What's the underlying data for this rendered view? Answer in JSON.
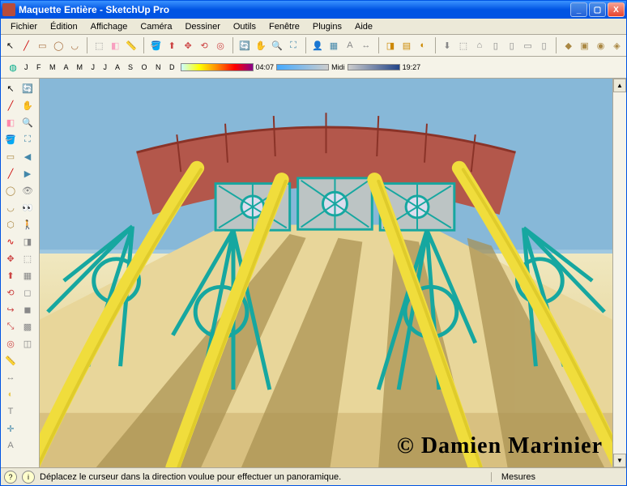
{
  "window": {
    "title": "Maquette Entière - SketchUp Pro"
  },
  "titlebar_buttons": {
    "min": "_",
    "max": "▢",
    "close": "X"
  },
  "menu": [
    "Fichier",
    "Édition",
    "Affichage",
    "Caméra",
    "Dessiner",
    "Outils",
    "Fenêtre",
    "Plugins",
    "Aide"
  ],
  "toolbar_icons": [
    {
      "name": "select-arrow",
      "glyph": "↖",
      "color": "#000"
    },
    {
      "name": "line-tool",
      "glyph": "╱",
      "color": "#c00"
    },
    {
      "name": "rectangle-tool",
      "glyph": "▭",
      "color": "#a87040"
    },
    {
      "name": "circle-tool",
      "glyph": "◯",
      "color": "#a87040"
    },
    {
      "name": "arc-tool",
      "glyph": "◡",
      "color": "#a87040"
    },
    {
      "name": "sep",
      "glyph": "",
      "color": ""
    },
    {
      "name": "component-tool",
      "glyph": "⬚",
      "color": "#888"
    },
    {
      "name": "eraser-tool",
      "glyph": "◧",
      "color": "#f8a0c0"
    },
    {
      "name": "tape-tool",
      "glyph": "📏",
      "color": "#e8c850"
    },
    {
      "name": "sep",
      "glyph": "",
      "color": ""
    },
    {
      "name": "paint-tool",
      "glyph": "🪣",
      "color": "#c44"
    },
    {
      "name": "pushpull-tool",
      "glyph": "⬆",
      "color": "#c44"
    },
    {
      "name": "move-tool",
      "glyph": "✥",
      "color": "#c44"
    },
    {
      "name": "rotate-tool",
      "glyph": "⟲",
      "color": "#c44"
    },
    {
      "name": "offset-tool",
      "glyph": "◎",
      "color": "#c44"
    },
    {
      "name": "sep",
      "glyph": "",
      "color": ""
    },
    {
      "name": "orbit-tool",
      "glyph": "🔄",
      "color": "#080"
    },
    {
      "name": "pan-tool",
      "glyph": "✋",
      "color": "#e8c850"
    },
    {
      "name": "zoom-tool",
      "glyph": "🔍",
      "color": "#48a"
    },
    {
      "name": "zoom-extents-tool",
      "glyph": "⛶",
      "color": "#48a"
    },
    {
      "name": "sep",
      "glyph": "",
      "color": ""
    },
    {
      "name": "avatar-tool",
      "glyph": "👤",
      "color": "#a66"
    },
    {
      "name": "window-tool",
      "glyph": "▦",
      "color": "#48a"
    },
    {
      "name": "text-tool",
      "glyph": "A",
      "color": "#888"
    },
    {
      "name": "dim-tool",
      "glyph": "↔",
      "color": "#888"
    },
    {
      "name": "sep",
      "glyph": "",
      "color": ""
    },
    {
      "name": "section-tool",
      "glyph": "◨",
      "color": "#c80"
    },
    {
      "name": "layers-tool",
      "glyph": "▤",
      "color": "#c80"
    },
    {
      "name": "shadow-tool",
      "glyph": "◐",
      "color": "#c80"
    },
    {
      "name": "sep",
      "glyph": "",
      "color": ""
    },
    {
      "name": "export-tool",
      "glyph": "⬇",
      "color": "#888"
    },
    {
      "name": "iso-tool",
      "glyph": "⬚",
      "color": "#888"
    },
    {
      "name": "house-tool",
      "glyph": "⌂",
      "color": "#888"
    },
    {
      "name": "front-tool",
      "glyph": "▯",
      "color": "#888"
    },
    {
      "name": "right-tool",
      "glyph": "▯",
      "color": "#888"
    },
    {
      "name": "top-tool",
      "glyph": "▭",
      "color": "#888"
    },
    {
      "name": "back-tool",
      "glyph": "▯",
      "color": "#888"
    },
    {
      "name": "sep",
      "glyph": "",
      "color": ""
    },
    {
      "name": "plugin1-tool",
      "glyph": "◆",
      "color": "#a84"
    },
    {
      "name": "plugin2-tool",
      "glyph": "▣",
      "color": "#a84"
    },
    {
      "name": "plugin3-tool",
      "glyph": "◉",
      "color": "#a84"
    },
    {
      "name": "plugin4-tool",
      "glyph": "◈",
      "color": "#a84"
    }
  ],
  "toolbar2": {
    "icon": {
      "glyph": "◍",
      "color": "#0a8"
    },
    "months": "J F M A M J J A S O N D",
    "time1": "04:07",
    "label_midi": "Midi",
    "time2": "19:27"
  },
  "left_tools": [
    {
      "name": "select",
      "glyph": "↖",
      "color": "#000"
    },
    {
      "name": "line",
      "glyph": "╱",
      "color": "#c00"
    },
    {
      "name": "eraser",
      "glyph": "◧",
      "color": "#f8a"
    },
    {
      "name": "paint",
      "glyph": "🪣",
      "color": "#c44"
    },
    {
      "name": "rect",
      "glyph": "▭",
      "color": "#a84"
    },
    {
      "name": "line2",
      "glyph": "╱",
      "color": "#c00"
    },
    {
      "name": "circle",
      "glyph": "◯",
      "color": "#a84"
    },
    {
      "name": "arc",
      "glyph": "◡",
      "color": "#a84"
    },
    {
      "name": "polygon",
      "glyph": "⬡",
      "color": "#a84"
    },
    {
      "name": "freehand",
      "glyph": "∿",
      "color": "#c00"
    },
    {
      "name": "move",
      "glyph": "✥",
      "color": "#c44"
    },
    {
      "name": "pushpull",
      "glyph": "⬆",
      "color": "#c44"
    },
    {
      "name": "rotate",
      "glyph": "⟲",
      "color": "#c44"
    },
    {
      "name": "follow",
      "glyph": "↪",
      "color": "#c44"
    },
    {
      "name": "scale",
      "glyph": "⤡",
      "color": "#c44"
    },
    {
      "name": "offset",
      "glyph": "◎",
      "color": "#c44"
    },
    {
      "name": "tape",
      "glyph": "📏",
      "color": "#e8c850"
    },
    {
      "name": "dim",
      "glyph": "↔",
      "color": "#888"
    },
    {
      "name": "protractor",
      "glyph": "◐",
      "color": "#e8c850"
    },
    {
      "name": "text",
      "glyph": "T",
      "color": "#888"
    },
    {
      "name": "axes",
      "glyph": "✛",
      "color": "#48a"
    },
    {
      "name": "3dtext",
      "glyph": "A",
      "color": "#888"
    },
    {
      "name": "orbit",
      "glyph": "🔄",
      "color": "#080"
    },
    {
      "name": "pan",
      "glyph": "✋",
      "color": "#e8c850"
    },
    {
      "name": "zoom",
      "glyph": "🔍",
      "color": "#48a"
    },
    {
      "name": "zoomwin",
      "glyph": "⛶",
      "color": "#48a"
    },
    {
      "name": "prev",
      "glyph": "◀",
      "color": "#48a"
    },
    {
      "name": "next",
      "glyph": "▶",
      "color": "#48a"
    },
    {
      "name": "position",
      "glyph": "👁",
      "color": "#888"
    },
    {
      "name": "look",
      "glyph": "👀",
      "color": "#888"
    },
    {
      "name": "walk",
      "glyph": "🚶",
      "color": "#888"
    },
    {
      "name": "section2",
      "glyph": "◨",
      "color": "#888"
    },
    {
      "name": "iso2",
      "glyph": "⬚",
      "color": "#888"
    },
    {
      "name": "wireframe",
      "glyph": "▦",
      "color": "#888"
    },
    {
      "name": "hidden",
      "glyph": "◻",
      "color": "#888"
    },
    {
      "name": "shaded",
      "glyph": "◼",
      "color": "#888"
    },
    {
      "name": "tex",
      "glyph": "▩",
      "color": "#888"
    },
    {
      "name": "mono",
      "glyph": "◫",
      "color": "#888"
    }
  ],
  "viewport": {
    "sky_color": "#87b8d8",
    "floor_color": "#e8d69a",
    "rail_color": "#f0dd3c",
    "lattice_color": "#16a7a0",
    "bridge_color": "#b84c3c",
    "shadow_color": "#a89050",
    "watermark": "© Damien Marinier"
  },
  "status": {
    "hint": "Déplacez le curseur dans la direction voulue pour effectuer un panoramique.",
    "measures_label": "Mesures"
  }
}
